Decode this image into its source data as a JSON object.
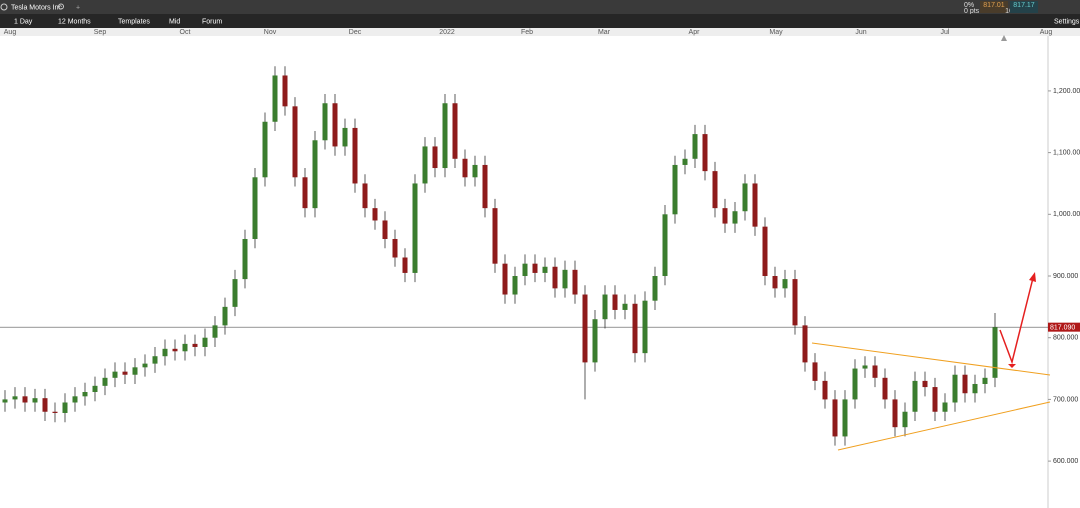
{
  "window": {
    "instrument": "Tesla Motors Inc",
    "add_tab": "+",
    "change_pct": "0%",
    "change_pts": "0 pts",
    "bid": "817.01",
    "ask": "817.17",
    "spread": "16"
  },
  "toolbar": {
    "interval": "1 Day",
    "range": "12 Months",
    "templates": "Templates",
    "price_type": "Mid",
    "forum": "Forum",
    "settings": "Settings"
  },
  "chart_data": {
    "type": "candlestick",
    "x_labels": [
      "Aug",
      "Sep",
      "Oct",
      "Nov",
      "Dec",
      "2022",
      "Feb",
      "Mar",
      "Apr",
      "May",
      "Jun",
      "Jul",
      "Aug"
    ],
    "ylim": [
      524,
      1289
    ],
    "yticks": [
      {
        "value": 600,
        "label": "600.000"
      },
      {
        "value": 700,
        "label": "700.000"
      },
      {
        "value": 800,
        "label": "800.000"
      },
      {
        "value": 900,
        "label": "900.000"
      },
      {
        "value": 1000,
        "label": "1,000.000"
      },
      {
        "value": 1100,
        "label": "1,100.000"
      },
      {
        "value": 1200,
        "label": "1,200.000"
      }
    ],
    "last_price": {
      "value": 817.09,
      "label": "817.090"
    },
    "up_color": "#3b7d2e",
    "down_color": "#8e1b1b",
    "open": [
      695,
      700,
      705,
      695,
      702,
      680,
      678,
      695,
      705,
      712,
      722,
      735,
      745,
      740,
      752,
      758,
      770,
      782,
      778,
      790,
      785,
      800,
      820,
      850,
      895,
      960,
      1060,
      1150,
      1225,
      1175,
      1060,
      1010,
      1120,
      1180,
      1110,
      1140,
      1050,
      1010,
      990,
      960,
      930,
      905,
      1050,
      1110,
      1075,
      1180,
      1090,
      1060,
      1080,
      1010,
      920,
      870,
      900,
      920,
      905,
      915,
      880,
      910,
      870,
      760,
      830,
      870,
      845,
      855,
      775,
      860,
      900,
      1000,
      1080,
      1090,
      1130,
      1070,
      1010,
      985,
      1005,
      1050,
      980,
      900,
      880,
      895,
      820,
      760,
      730,
      700,
      640,
      700,
      750,
      755,
      735,
      700,
      655,
      680,
      730,
      720,
      680,
      695,
      740,
      710,
      725,
      735
    ],
    "high": [
      715,
      720,
      720,
      717,
      717,
      695,
      710,
      720,
      727,
      737,
      750,
      760,
      760,
      767,
      773,
      785,
      797,
      797,
      805,
      805,
      815,
      835,
      865,
      910,
      975,
      1075,
      1165,
      1240,
      1240,
      1190,
      1075,
      1135,
      1195,
      1195,
      1155,
      1155,
      1065,
      1025,
      1005,
      975,
      945,
      1065,
      1125,
      1125,
      1195,
      1195,
      1105,
      1095,
      1095,
      1025,
      935,
      915,
      935,
      935,
      930,
      930,
      925,
      925,
      885,
      845,
      885,
      885,
      870,
      870,
      875,
      915,
      1015,
      1095,
      1105,
      1145,
      1145,
      1085,
      1025,
      1020,
      1065,
      1065,
      995,
      915,
      910,
      910,
      835,
      775,
      745,
      715,
      715,
      765,
      770,
      770,
      750,
      715,
      695,
      745,
      745,
      735,
      710,
      755,
      755,
      740,
      750,
      840
    ],
    "low": [
      680,
      685,
      680,
      680,
      665,
      663,
      663,
      680,
      690,
      697,
      707,
      720,
      725,
      725,
      737,
      743,
      755,
      763,
      763,
      770,
      770,
      785,
      805,
      835,
      880,
      945,
      1045,
      1135,
      1160,
      1045,
      995,
      995,
      1105,
      1095,
      1095,
      1035,
      995,
      975,
      945,
      915,
      890,
      890,
      1035,
      1060,
      1060,
      1075,
      1045,
      1045,
      995,
      905,
      855,
      855,
      885,
      890,
      890,
      865,
      865,
      855,
      700,
      745,
      815,
      830,
      830,
      760,
      760,
      845,
      885,
      985,
      1065,
      1075,
      1055,
      995,
      970,
      970,
      990,
      965,
      885,
      865,
      865,
      805,
      745,
      715,
      685,
      625,
      625,
      685,
      735,
      720,
      685,
      640,
      640,
      665,
      705,
      665,
      665,
      680,
      695,
      695,
      710,
      720
    ],
    "close": [
      700,
      705,
      695,
      702,
      680,
      678,
      695,
      705,
      712,
      722,
      735,
      745,
      740,
      752,
      758,
      770,
      782,
      778,
      790,
      785,
      800,
      820,
      850,
      895,
      960,
      1060,
      1150,
      1225,
      1175,
      1060,
      1010,
      1120,
      1180,
      1110,
      1140,
      1050,
      1010,
      990,
      960,
      930,
      905,
      1050,
      1110,
      1075,
      1180,
      1090,
      1060,
      1080,
      1010,
      920,
      870,
      900,
      920,
      905,
      915,
      880,
      910,
      870,
      760,
      830,
      870,
      845,
      855,
      775,
      860,
      900,
      1000,
      1080,
      1090,
      1130,
      1070,
      1010,
      985,
      1005,
      1050,
      980,
      900,
      880,
      895,
      820,
      760,
      730,
      700,
      640,
      700,
      750,
      755,
      735,
      700,
      655,
      680,
      730,
      720,
      680,
      695,
      740,
      710,
      725,
      735,
      817
    ]
  }
}
